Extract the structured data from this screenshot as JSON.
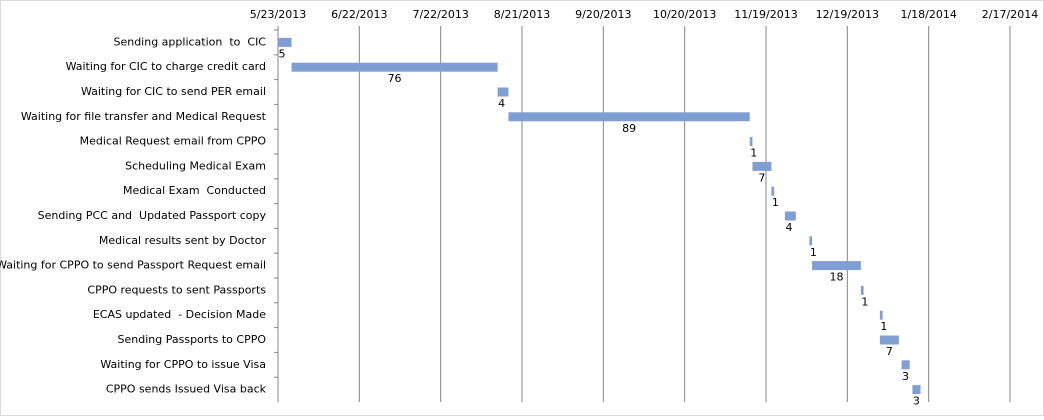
{
  "chart_data": {
    "type": "gantt",
    "categories": [
      "Sending application  to  CIC",
      "Waiting for CIC to charge credit card",
      "Waiting for CIC to send PER email",
      "Waiting for file transfer and Medical Request",
      "Medical Request email from CPPO",
      "Scheduling Medical Exam",
      "Medical Exam  Conducted",
      "Sending PCC and  Updated Passport copy",
      "Medical results sent by Doctor",
      "Waiting for CPPO to send Passport Request email",
      "CPPO requests to sent Passports",
      "ECAS updated  - Decision Made",
      "Sending Passports to CPPO",
      "Waiting for CPPO to issue Visa",
      "CPPO sends Issued Visa back"
    ],
    "starts": [
      "2013-05-23",
      "2013-05-28",
      "2013-08-12",
      "2013-08-16",
      "2013-11-13",
      "2013-11-14",
      "2013-11-21",
      "2013-11-26",
      "2013-12-05",
      "2013-12-06",
      "2013-12-24",
      "2013-12-31",
      "2013-12-31",
      "2014-01-08",
      "2014-01-12"
    ],
    "values": [
      5,
      76,
      4,
      89,
      1,
      7,
      1,
      4,
      1,
      18,
      1,
      1,
      7,
      3,
      3
    ],
    "color": "#7f9fd4",
    "xlim": [
      "2013-05-23",
      "2014-02-17"
    ],
    "xticks": [
      {
        "value": "2013-05-23",
        "label": "5/23/2013"
      },
      {
        "value": "2013-06-22",
        "label": "6/22/2013"
      },
      {
        "value": "2013-07-22",
        "label": "7/22/2013"
      },
      {
        "value": "2013-08-21",
        "label": "8/21/2013"
      },
      {
        "value": "2013-09-20",
        "label": "9/20/2013"
      },
      {
        "value": "2013-10-20",
        "label": "10/20/2013"
      },
      {
        "value": "2013-11-19",
        "label": "11/19/2013"
      },
      {
        "value": "2013-12-19",
        "label": "12/19/2013"
      },
      {
        "value": "2014-01-18",
        "label": "1/18/2014"
      },
      {
        "value": "2014-02-17",
        "label": "2/17/2014"
      }
    ],
    "grid": true
  }
}
